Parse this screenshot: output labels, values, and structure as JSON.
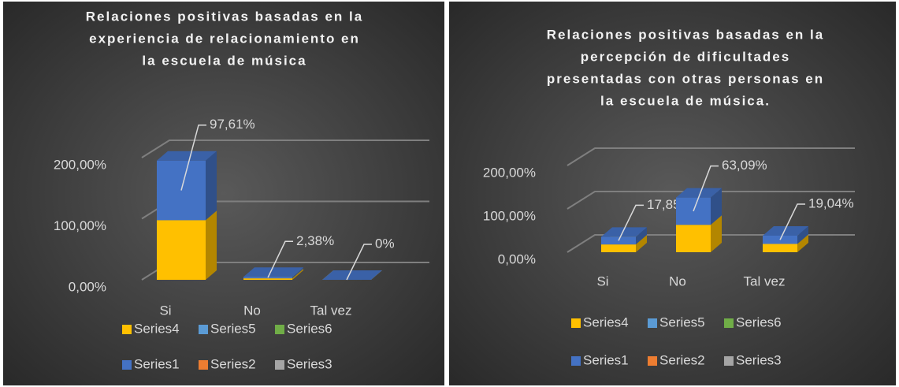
{
  "chart_data": [
    {
      "type": "bar3d_stacked",
      "title": [
        "Relaciones positivas basadas en la",
        "experiencia de relacionamiento en",
        "la escuela de música"
      ],
      "categories": [
        "Si",
        "No",
        "Tal vez"
      ],
      "series": [
        {
          "name": "Series4",
          "color": "#ffc000",
          "values": [
            97.61,
            2.38,
            0
          ]
        },
        {
          "name": "Series5",
          "color": "#5b9bd5",
          "values": [
            null,
            null,
            null
          ]
        },
        {
          "name": "Series6",
          "color": "#70ad47",
          "values": [
            null,
            null,
            null
          ]
        },
        {
          "name": "Series1",
          "color": "#4472c4",
          "values": [
            97.61,
            2.38,
            0
          ],
          "value_labels": [
            "97,61%",
            "2,38%",
            "0%"
          ]
        },
        {
          "name": "Series2",
          "color": "#ed7d31",
          "values": [
            null,
            null,
            null
          ]
        },
        {
          "name": "Series3",
          "color": "#a5a5a5",
          "values": [
            null,
            null,
            null
          ]
        }
      ],
      "ylim": [
        0,
        200
      ],
      "yticks": [
        {
          "value": 0,
          "label": "0,00%"
        },
        {
          "value": 100,
          "label": "100,00%"
        },
        {
          "value": 200,
          "label": "200,00%"
        }
      ],
      "grid": true,
      "legend": "bottom"
    },
    {
      "type": "bar3d_stacked",
      "title": [
        "Relaciones positivas basadas  en la",
        "percepción de dificultades",
        "presentadas con otras personas en",
        "la escuela de música."
      ],
      "categories": [
        "Si",
        "No",
        "Tal vez"
      ],
      "series": [
        {
          "name": "Series4",
          "color": "#ffc000",
          "values": [
            17.85,
            63.09,
            19.04
          ]
        },
        {
          "name": "Series5",
          "color": "#5b9bd5",
          "values": [
            null,
            null,
            null
          ]
        },
        {
          "name": "Series6",
          "color": "#70ad47",
          "values": [
            null,
            null,
            null
          ]
        },
        {
          "name": "Series1",
          "color": "#4472c4",
          "values": [
            17.85,
            63.09,
            19.04
          ],
          "value_labels": [
            "17,85%",
            "63,09%",
            "19,04%"
          ]
        },
        {
          "name": "Series2",
          "color": "#ed7d31",
          "values": [
            null,
            null,
            null
          ]
        },
        {
          "name": "Series3",
          "color": "#a5a5a5",
          "values": [
            null,
            null,
            null
          ]
        }
      ],
      "ylim": [
        0,
        200
      ],
      "yticks": [
        {
          "value": 0,
          "label": "0,00%"
        },
        {
          "value": 100,
          "label": "100,00%"
        },
        {
          "value": 200,
          "label": "200,00%"
        }
      ],
      "grid": true,
      "legend": "bottom"
    }
  ]
}
